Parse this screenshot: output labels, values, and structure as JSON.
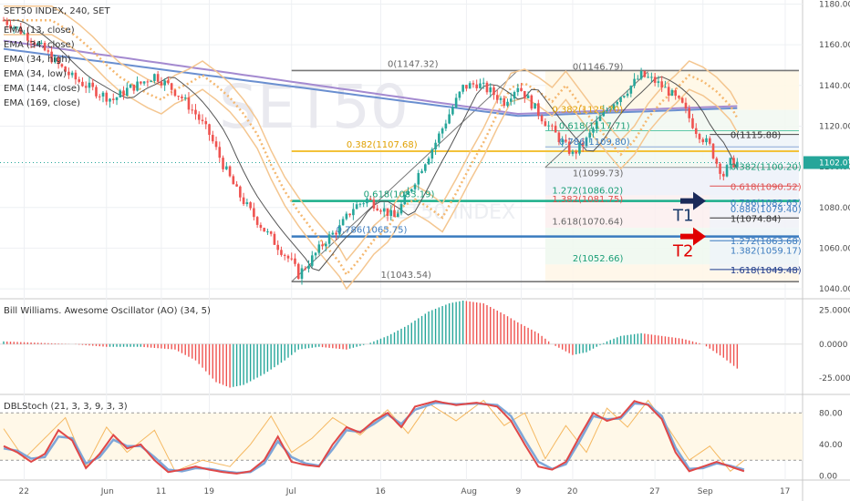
{
  "chart_data": {
    "type": "candlestick",
    "symbol_line": "SET50 INDEX, 240, SET",
    "watermark_text": "SET50",
    "watermark_sub": "SET50 INDEX",
    "legend": [
      "EMA (13, close)",
      "EMA (34, close)",
      "EMA (34, high)",
      "EMA (34, low)",
      "EMA (144, close)",
      "EMA (169, close)"
    ],
    "price_axis": {
      "ticks": [
        1180,
        1160,
        1140,
        1120,
        1100,
        1080,
        1060,
        1040
      ],
      "labels": [
        "1180.00",
        "1160.00",
        "1140.00",
        "1120.00",
        "1100.00",
        "1080.00",
        "1060.00",
        "1040.00"
      ],
      "range": [
        1036,
        1182
      ]
    },
    "last_price": {
      "value": 1102.07,
      "label": "1102.07",
      "color": "#26a69a"
    },
    "x_axis": {
      "labels": [
        "22",
        "Jun",
        "11",
        "19",
        "Jul",
        "16",
        "Aug",
        "9",
        "20",
        "27",
        "Sep",
        "17"
      ],
      "bar_index": [
        6,
        30,
        46,
        60,
        84,
        110,
        135,
        151,
        166,
        190,
        204,
        228
      ],
      "total_bars": 232
    },
    "price_track": [
      [
        0,
        1172
      ],
      [
        4,
        1168
      ],
      [
        8,
        1163
      ],
      [
        12,
        1157
      ],
      [
        16,
        1150
      ],
      [
        20,
        1144
      ],
      [
        24,
        1140
      ],
      [
        28,
        1136
      ],
      [
        32,
        1133
      ],
      [
        36,
        1138
      ],
      [
        40,
        1141
      ],
      [
        44,
        1145
      ],
      [
        48,
        1140
      ],
      [
        52,
        1134
      ],
      [
        56,
        1126
      ],
      [
        60,
        1116
      ],
      [
        64,
        1101
      ],
      [
        68,
        1088
      ],
      [
        72,
        1078
      ],
      [
        76,
        1069
      ],
      [
        80,
        1061
      ],
      [
        84,
        1053
      ],
      [
        86,
        1047
      ],
      [
        90,
        1055
      ],
      [
        94,
        1064
      ],
      [
        98,
        1070
      ],
      [
        102,
        1080
      ],
      [
        106,
        1084
      ],
      [
        110,
        1080
      ],
      [
        114,
        1075
      ],
      [
        118,
        1087
      ],
      [
        122,
        1100
      ],
      [
        126,
        1112
      ],
      [
        130,
        1126
      ],
      [
        134,
        1139
      ],
      [
        138,
        1141
      ],
      [
        142,
        1137
      ],
      [
        146,
        1132
      ],
      [
        150,
        1140
      ],
      [
        154,
        1131
      ],
      [
        158,
        1122
      ],
      [
        162,
        1114
      ],
      [
        166,
        1106
      ],
      [
        170,
        1113
      ],
      [
        174,
        1124
      ],
      [
        178,
        1132
      ],
      [
        182,
        1138
      ],
      [
        186,
        1145
      ],
      [
        190,
        1142
      ],
      [
        194,
        1137
      ],
      [
        198,
        1130
      ],
      [
        202,
        1118
      ],
      [
        206,
        1110
      ],
      [
        208,
        1102
      ],
      [
        210,
        1096
      ],
      [
        212,
        1102
      ]
    ],
    "ema_series": [
      {
        "name": "EMA (13, close)",
        "color": "#555555"
      },
      {
        "name": "EMA (34, close)",
        "color": "#f0b060"
      },
      {
        "name": "EMA (34, high)",
        "color": "#f4c690"
      },
      {
        "name": "EMA (34, low)",
        "color": "#f4c690"
      },
      {
        "name": "EMA (144, close)",
        "color": "#6a8fd0"
      },
      {
        "name": "EMA (169, close)",
        "color": "#a080c8"
      }
    ],
    "fib_set_left": {
      "high": 1147.32,
      "low": 1043.54,
      "labels": [
        {
          "level": 1147.32,
          "text": "0(1147.32)",
          "color": "#666666"
        },
        {
          "level": 1107.68,
          "text": "0.382(1107.68)",
          "color": "#e0a000"
        },
        {
          "level": 1083.19,
          "text": "0.618(1083.19)",
          "color": "#1a9e77"
        },
        {
          "level": 1065.75,
          "text": "0.786(1065.75)",
          "color": "#3b7bbf"
        },
        {
          "level": 1043.54,
          "text": "1(1043.54)",
          "color": "#666666"
        }
      ]
    },
    "fib_set_mid": {
      "labels": [
        {
          "level": 1146.79,
          "text": "0(1146.79)",
          "color": "#666666"
        },
        {
          "level": 1125.7,
          "text": "0.382(1125.70)",
          "color": "#e0a000"
        },
        {
          "level": 1117.71,
          "text": "0.618(1117.71)",
          "color": "#1a9e77"
        },
        {
          "level": 1109.8,
          "text": "0.786(1109.80)",
          "color": "#3b7bbf"
        },
        {
          "level": 1099.73,
          "text": "1(1099.73)",
          "color": "#666666"
        },
        {
          "level": 1086.02,
          "text": "1.272(1086.02)",
          "color": "#1a9e77"
        },
        {
          "level": 1081.75,
          "text": "1.382(1081.75)",
          "color": "#e05050"
        },
        {
          "level": 1070.64,
          "text": "1.618(1070.64)",
          "color": "#666666"
        },
        {
          "level": 1052.66,
          "text": "2(1052.66)",
          "color": "#1a9e77"
        }
      ]
    },
    "fib_set_right": {
      "labels": [
        {
          "level": 1115.88,
          "text": "0(1115.88)",
          "color": "#333333"
        },
        {
          "level": 1100.2,
          "text": "0.382(1100.20)",
          "color": "#1a9e77"
        },
        {
          "level": 1090.52,
          "text": "0.618(1090.52)",
          "color": "#e05050"
        },
        {
          "level": 1082.65,
          "text": "0.786(1082.65)",
          "color": "#3b7bbf"
        },
        {
          "level": 1079.4,
          "text": "0.886(1079.40)",
          "color": "#3b7bbf"
        },
        {
          "level": 1074.84,
          "text": "1(1074.84)",
          "color": "#333333"
        },
        {
          "level": 1063.68,
          "text": "1.272(1063.68)",
          "color": "#3b7bbf"
        },
        {
          "level": 1059.17,
          "text": "1.382(1059.17)",
          "color": "#3b7bbf"
        },
        {
          "level": 1049.48,
          "text": "1.618(1049.48)",
          "color": "#1e3a8a"
        }
      ]
    },
    "targets": [
      {
        "name": "T1",
        "level": 1083.19,
        "arrow_color": "#1a2a5a",
        "text_color": "#1a3a6a"
      },
      {
        "name": "T2",
        "level": 1065.75,
        "arrow_color": "#e00000",
        "text_color": "#e00000"
      }
    ],
    "ao": {
      "title": "Bill Williams. Awesome Oscillator (AO) (34, 5)",
      "ticks": [
        25,
        0,
        -25
      ],
      "labels": [
        "25.0000",
        "0.0000",
        "-25.0000"
      ],
      "range": [
        -35,
        32
      ],
      "track": [
        [
          0,
          2
        ],
        [
          20,
          0
        ],
        [
          30,
          -2
        ],
        [
          40,
          -2
        ],
        [
          50,
          -4
        ],
        [
          56,
          -12
        ],
        [
          62,
          -28
        ],
        [
          66,
          -32
        ],
        [
          70,
          -30
        ],
        [
          76,
          -22
        ],
        [
          82,
          -12
        ],
        [
          86,
          -4
        ],
        [
          92,
          -2
        ],
        [
          100,
          -4
        ],
        [
          106,
          0
        ],
        [
          112,
          6
        ],
        [
          118,
          14
        ],
        [
          124,
          24
        ],
        [
          130,
          30
        ],
        [
          134,
          32
        ],
        [
          140,
          30
        ],
        [
          146,
          22
        ],
        [
          150,
          16
        ],
        [
          156,
          8
        ],
        [
          160,
          0
        ],
        [
          166,
          -8
        ],
        [
          170,
          -6
        ],
        [
          176,
          2
        ],
        [
          180,
          6
        ],
        [
          186,
          8
        ],
        [
          192,
          6
        ],
        [
          198,
          4
        ],
        [
          204,
          0
        ],
        [
          210,
          -10
        ],
        [
          214,
          -18
        ]
      ]
    },
    "stoch": {
      "title": "DBLStoch (21, 3, 3, 9, 3, 3)",
      "ticks": [
        80,
        40,
        0
      ],
      "labels": [
        "80.00",
        "40.00",
        "0.00"
      ],
      "range": [
        -4,
        100
      ],
      "k_track": [
        [
          0,
          38
        ],
        [
          4,
          30
        ],
        [
          8,
          18
        ],
        [
          12,
          28
        ],
        [
          16,
          58
        ],
        [
          20,
          45
        ],
        [
          24,
          10
        ],
        [
          28,
          28
        ],
        [
          32,
          52
        ],
        [
          36,
          35
        ],
        [
          40,
          40
        ],
        [
          44,
          20
        ],
        [
          48,
          5
        ],
        [
          52,
          8
        ],
        [
          56,
          12
        ],
        [
          60,
          8
        ],
        [
          64,
          5
        ],
        [
          68,
          3
        ],
        [
          72,
          6
        ],
        [
          76,
          20
        ],
        [
          80,
          50
        ],
        [
          84,
          18
        ],
        [
          88,
          14
        ],
        [
          92,
          12
        ],
        [
          96,
          40
        ],
        [
          100,
          62
        ],
        [
          104,
          55
        ],
        [
          108,
          70
        ],
        [
          112,
          80
        ],
        [
          116,
          62
        ],
        [
          120,
          88
        ],
        [
          126,
          95
        ],
        [
          132,
          90
        ],
        [
          138,
          93
        ],
        [
          144,
          88
        ],
        [
          148,
          70
        ],
        [
          152,
          40
        ],
        [
          156,
          12
        ],
        [
          160,
          8
        ],
        [
          164,
          18
        ],
        [
          168,
          50
        ],
        [
          172,
          80
        ],
        [
          176,
          70
        ],
        [
          180,
          75
        ],
        [
          184,
          95
        ],
        [
          188,
          90
        ],
        [
          192,
          72
        ],
        [
          196,
          30
        ],
        [
          200,
          6
        ],
        [
          204,
          12
        ],
        [
          208,
          18
        ],
        [
          212,
          12
        ],
        [
          216,
          6
        ]
      ],
      "d_track": [
        [
          0,
          35
        ],
        [
          4,
          32
        ],
        [
          8,
          22
        ],
        [
          12,
          24
        ],
        [
          16,
          50
        ],
        [
          20,
          48
        ],
        [
          24,
          16
        ],
        [
          28,
          24
        ],
        [
          32,
          46
        ],
        [
          36,
          38
        ],
        [
          40,
          38
        ],
        [
          44,
          24
        ],
        [
          48,
          8
        ],
        [
          52,
          6
        ],
        [
          56,
          10
        ],
        [
          60,
          9
        ],
        [
          64,
          6
        ],
        [
          68,
          4
        ],
        [
          72,
          5
        ],
        [
          76,
          16
        ],
        [
          80,
          44
        ],
        [
          84,
          24
        ],
        [
          88,
          16
        ],
        [
          92,
          13
        ],
        [
          96,
          34
        ],
        [
          100,
          58
        ],
        [
          104,
          56
        ],
        [
          108,
          66
        ],
        [
          112,
          78
        ],
        [
          116,
          66
        ],
        [
          120,
          84
        ],
        [
          126,
          93
        ],
        [
          132,
          91
        ],
        [
          138,
          92
        ],
        [
          144,
          90
        ],
        [
          148,
          76
        ],
        [
          152,
          46
        ],
        [
          156,
          18
        ],
        [
          160,
          9
        ],
        [
          164,
          15
        ],
        [
          168,
          44
        ],
        [
          172,
          76
        ],
        [
          176,
          72
        ],
        [
          180,
          73
        ],
        [
          184,
          92
        ],
        [
          188,
          91
        ],
        [
          192,
          76
        ],
        [
          196,
          36
        ],
        [
          200,
          9
        ],
        [
          204,
          10
        ],
        [
          208,
          16
        ],
        [
          212,
          13
        ],
        [
          216,
          8
        ]
      ],
      "slow_track": [
        [
          0,
          60
        ],
        [
          6,
          22
        ],
        [
          12,
          48
        ],
        [
          18,
          74
        ],
        [
          24,
          12
        ],
        [
          30,
          62
        ],
        [
          36,
          30
        ],
        [
          44,
          58
        ],
        [
          50,
          6
        ],
        [
          58,
          20
        ],
        [
          66,
          12
        ],
        [
          72,
          40
        ],
        [
          78,
          76
        ],
        [
          84,
          30
        ],
        [
          90,
          48
        ],
        [
          96,
          74
        ],
        [
          104,
          52
        ],
        [
          112,
          84
        ],
        [
          118,
          54
        ],
        [
          124,
          92
        ],
        [
          132,
          70
        ],
        [
          140,
          96
        ],
        [
          146,
          64
        ],
        [
          152,
          80
        ],
        [
          158,
          22
        ],
        [
          164,
          64
        ],
        [
          170,
          30
        ],
        [
          176,
          86
        ],
        [
          182,
          62
        ],
        [
          188,
          96
        ],
        [
          194,
          60
        ],
        [
          200,
          20
        ],
        [
          206,
          38
        ],
        [
          212,
          6
        ],
        [
          216,
          20
        ]
      ]
    }
  }
}
